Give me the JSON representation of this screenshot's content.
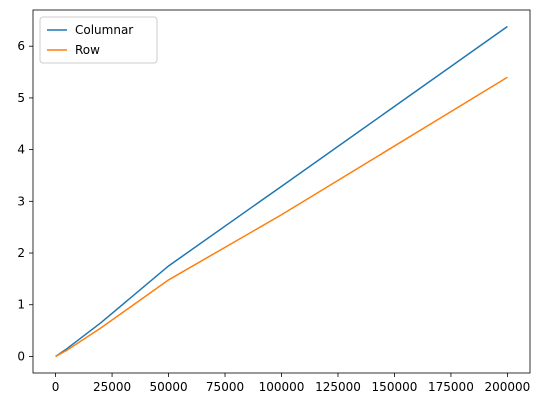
{
  "chart_data": {
    "type": "line",
    "x": [
      0,
      5000,
      20000,
      50000,
      100000,
      200000
    ],
    "series": [
      {
        "name": "Columnar",
        "color": "#1f77b4",
        "values": [
          0,
          0.15,
          0.65,
          1.75,
          3.29,
          6.38
        ]
      },
      {
        "name": "Row",
        "color": "#ff7f0e",
        "values": [
          0,
          0.12,
          0.55,
          1.48,
          2.74,
          5.4
        ]
      }
    ],
    "xlim": [
      -10000,
      210000
    ],
    "xticks": [
      0,
      25000,
      50000,
      75000,
      100000,
      125000,
      150000,
      175000,
      200000
    ],
    "ylim": [
      -0.32,
      6.7
    ],
    "yticks": [
      0,
      1,
      2,
      3,
      4,
      5,
      6
    ],
    "legend": "upper-left"
  }
}
